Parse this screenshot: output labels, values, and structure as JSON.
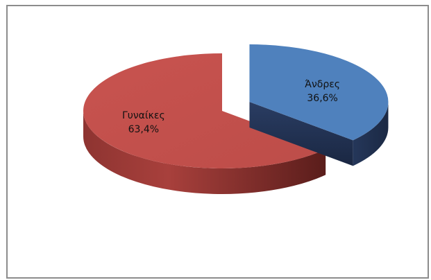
{
  "chart_data": {
    "type": "pie",
    "style": "3d-exploded",
    "slices": [
      {
        "name": "Άνδρες",
        "value": 36.6,
        "value_label": "36,6%",
        "color": "#4f81bd",
        "exploded": true
      },
      {
        "name": "Γυναίκες",
        "value": 63.4,
        "value_label": "63,4%",
        "color": "#c0504d",
        "exploded": false
      }
    ],
    "legend": "none"
  }
}
